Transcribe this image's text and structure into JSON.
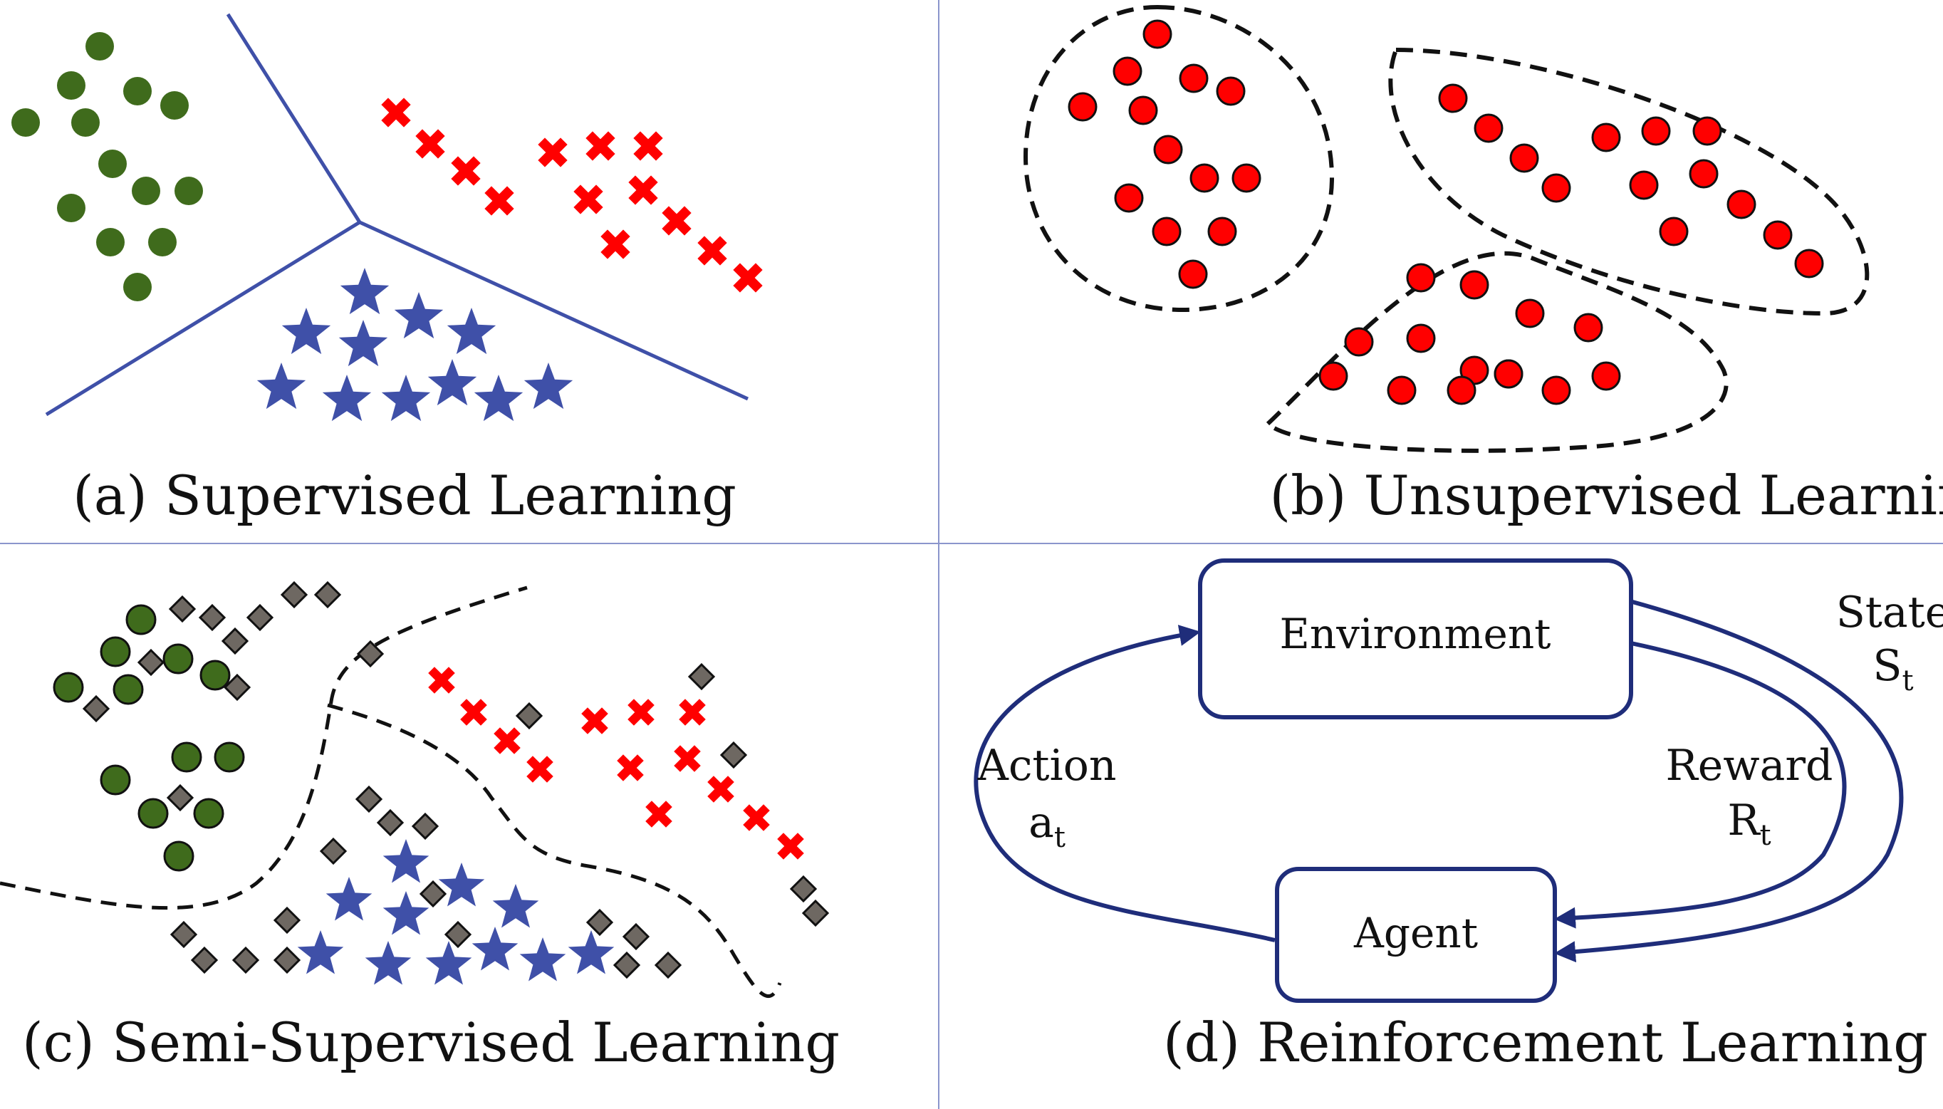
{
  "colors": {
    "green": "#3f6b1c",
    "red": "#ff0000",
    "blue": "#3f50a8",
    "gray": "#6e6862",
    "navy": "#1f2d7a",
    "divider": "#8b95cc",
    "black": "#111111"
  },
  "panels": {
    "a": {
      "caption": "(a) Supervised Learning"
    },
    "b": {
      "caption": "(b) Unsupervised Learning"
    },
    "c": {
      "caption": "(c) Semi-Supervised Learning"
    },
    "d": {
      "caption": "(d) Reinforcement Learning",
      "environment": "Environment",
      "agent": "Agent",
      "action": {
        "label": "Action",
        "symbol": "a",
        "subscript": "t"
      },
      "reward": {
        "label": "Reward",
        "symbol": "R",
        "subscript": "t"
      },
      "state": {
        "label": "State",
        "symbol": "S",
        "subscript": "t"
      }
    }
  },
  "icons": {
    "green_point": "filled-circle",
    "red_point": "cross-mark",
    "blue_point": "five-point-star",
    "unlabeled_point": "diamond",
    "cluster_point": "red-circle"
  }
}
